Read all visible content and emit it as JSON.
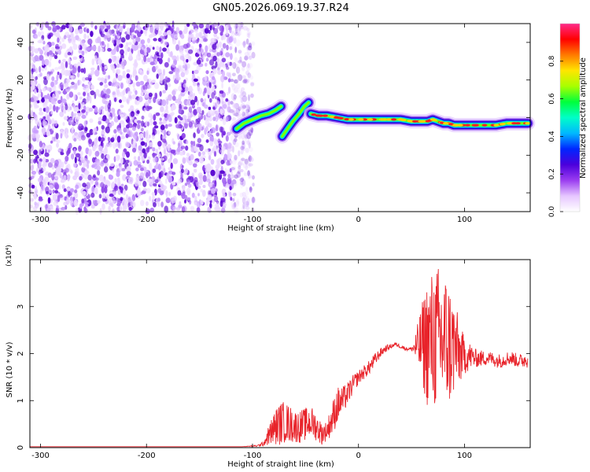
{
  "title": "GN05.2026.069.19.37.R24",
  "chart_data": [
    {
      "type": "heatmap",
      "xlabel": "Height of straight line (km)",
      "ylabel": "Frequency (Hz)",
      "xlim": [
        -310,
        162
      ],
      "ylim": [
        -50,
        50
      ],
      "x_ticks": [
        -300,
        -200,
        -100,
        0,
        100
      ],
      "y_ticks": [
        40,
        20,
        0,
        -20,
        -40
      ],
      "colorbar": {
        "label": "Normalized spectral amplitude",
        "range": [
          0,
          1
        ],
        "ticks": [
          "0.0",
          "0.2",
          "0.4",
          "0.6",
          "0.8"
        ],
        "colors": [
          "#ffffff",
          "#e6c6ff",
          "#9a3df0",
          "#4b00dc",
          "#0026ff",
          "#00b8ff",
          "#00ffc8",
          "#00ff3c",
          "#a8ff00",
          "#ffe600",
          "#ff7a00",
          "#ff0000",
          "#ff2a8a"
        ]
      },
      "noise_region_x": [
        -310,
        -105
      ],
      "trace_segments": [
        {
          "x": [
            -115,
            -108,
            -100,
            -92,
            -85,
            -78,
            -73
          ],
          "y": [
            -6,
            -3,
            -1,
            1,
            2,
            4,
            6
          ]
        },
        {
          "x": [
            -72,
            -67,
            -62,
            -56,
            -51,
            -47
          ],
          "y": [
            -10,
            -6,
            -2,
            2,
            6,
            8
          ]
        },
        {
          "x": [
            -45,
            -38,
            -30,
            -20,
            -10,
            0,
            10,
            20,
            30,
            40,
            50,
            58,
            65,
            70,
            75,
            80,
            85,
            90,
            95,
            100,
            110,
            120,
            130,
            140,
            150,
            160
          ],
          "y": [
            2,
            1,
            1,
            0,
            -1,
            -1,
            -1,
            -1,
            -1,
            -1,
            -2,
            -2,
            -2,
            -1,
            -2,
            -3,
            -3,
            -4,
            -4,
            -4,
            -4,
            -4,
            -4,
            -3,
            -3,
            -3
          ]
        }
      ]
    },
    {
      "type": "line",
      "xlabel": "Height of straight line (km)",
      "ylabel": "SNR (10 * v/v)",
      "multiplier": "(x10⁴)",
      "xlim": [
        -310,
        162
      ],
      "ylim": [
        0,
        4
      ],
      "x_ticks": [
        -300,
        -200,
        -100,
        0,
        100
      ],
      "y_ticks": [
        0,
        1,
        2,
        3
      ],
      "series": [
        {
          "color": "#e8232a",
          "x": [
            -310,
            -300,
            -250,
            -200,
            -150,
            -110,
            -95,
            -90,
            -85,
            -80,
            -75,
            -70,
            -65,
            -60,
            -55,
            -50,
            -45,
            -40,
            -35,
            -30,
            -25,
            -20,
            -15,
            -10,
            -5,
            0,
            5,
            10,
            15,
            20,
            25,
            30,
            35,
            40,
            45,
            50,
            55,
            60,
            65,
            70,
            75,
            80,
            85,
            90,
            95,
            100,
            105,
            110,
            115,
            120,
            125,
            130,
            135,
            140,
            145,
            150,
            155,
            160
          ],
          "y": [
            0.02,
            0.02,
            0.02,
            0.02,
            0.02,
            0.02,
            0.04,
            0.08,
            0.25,
            0.4,
            0.5,
            0.55,
            0.5,
            0.45,
            0.45,
            0.5,
            0.55,
            0.45,
            0.3,
            0.35,
            0.6,
            0.9,
            1.0,
            1.15,
            1.35,
            1.5,
            1.6,
            1.7,
            1.85,
            2.0,
            2.1,
            2.15,
            2.2,
            2.15,
            2.1,
            2.1,
            2.15,
            2.2,
            2.25,
            2.3,
            2.3,
            2.3,
            2.2,
            2.15,
            2.0,
            1.95,
            1.95,
            1.9,
            1.9,
            1.9,
            1.9,
            1.85,
            1.85,
            1.9,
            1.9,
            1.85,
            1.85,
            1.9
          ],
          "noise_amplitude": [
            0,
            0,
            0,
            0,
            0,
            0,
            0.02,
            0.05,
            0.2,
            0.35,
            0.45,
            0.45,
            0.4,
            0.35,
            0.35,
            0.35,
            0.35,
            0.3,
            0.25,
            0.2,
            0.35,
            0.4,
            0.3,
            0.25,
            0.2,
            0.15,
            0.15,
            0.15,
            0.15,
            0.1,
            0.08,
            0.05,
            0.04,
            0.04,
            0.04,
            0.04,
            0.4,
            0.9,
            1.4,
            1.5,
            1.6,
            1.6,
            1.4,
            1.1,
            0.7,
            0.4,
            0.3,
            0.2,
            0.18,
            0.15,
            0.15,
            0.15,
            0.15,
            0.15,
            0.15,
            0.15,
            0.15,
            0.2
          ]
        }
      ]
    }
  ]
}
